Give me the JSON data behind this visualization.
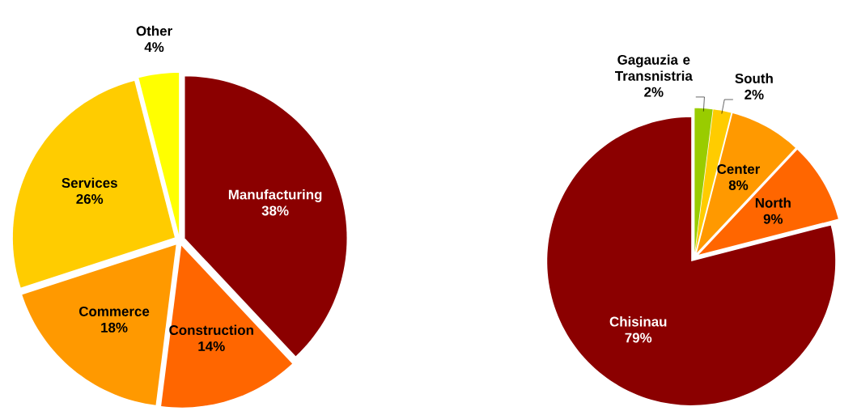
{
  "chart_data": [
    {
      "type": "pie",
      "categories": [
        "Manufacturing",
        "Construction",
        "Commerce",
        "Services",
        "Other"
      ],
      "values": [
        38,
        14,
        18,
        26,
        4
      ],
      "colors": [
        "#8b0000",
        "#ff6600",
        "#ff9900",
        "#ffcc00",
        "#ffff00"
      ],
      "value_labels": [
        "38%",
        "14%",
        "18%",
        "26%",
        "4%"
      ]
    },
    {
      "type": "pie",
      "categories": [
        "Gagauzia e Transnistria",
        "South",
        "Center",
        "North",
        "Chisinau"
      ],
      "values": [
        2,
        2,
        8,
        9,
        79
      ],
      "colors": [
        "#99cc00",
        "#ffcc00",
        "#ff9900",
        "#ff6600",
        "#8b0000"
      ],
      "value_labels": [
        "2%",
        "2%",
        "8%",
        "9%",
        "79%"
      ]
    }
  ]
}
